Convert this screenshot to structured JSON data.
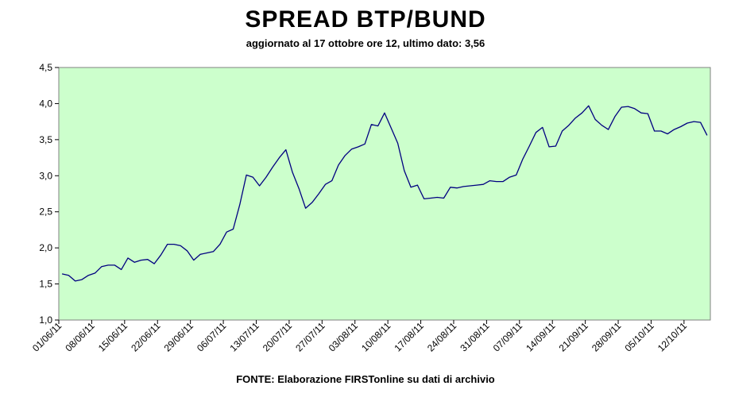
{
  "chart_data": {
    "type": "line",
    "title": "SPREAD BTP/BUND",
    "subtitle": "aggiornato al 17 ottobre ore 12, ultimo dato: 3,56",
    "source": "FONTE: Elaborazione FIRSTonline su dati di archivio",
    "xlabel": "",
    "ylabel": "",
    "ylim": [
      1.0,
      4.5
    ],
    "y_ticks": [
      "1,0",
      "1,5",
      "2,0",
      "2,5",
      "3,0",
      "3,5",
      "4,0",
      "4,5"
    ],
    "x_tick_labels": [
      "01/06/11",
      "08/06/11",
      "15/06/11",
      "22/06/11",
      "29/06/11",
      "06/07/11",
      "13/07/11",
      "20/07/11",
      "27/07/11",
      "03/08/11",
      "10/08/11",
      "17/08/11",
      "24/08/11",
      "31/08/11",
      "07/09/11",
      "14/09/11",
      "21/09/11",
      "28/09/11",
      "05/10/11",
      "12/10/11"
    ],
    "colors": {
      "plot_background": "#ccffcc",
      "line": "#000080"
    },
    "grid": false,
    "series": [
      {
        "x": [
          "01/06/11",
          "02/06/11",
          "03/06/11",
          "06/06/11",
          "07/06/11",
          "08/06/11",
          "09/06/11",
          "10/06/11",
          "13/06/11",
          "14/06/11",
          "15/06/11",
          "16/06/11",
          "17/06/11",
          "20/06/11",
          "21/06/11",
          "22/06/11",
          "23/06/11",
          "24/06/11",
          "27/06/11",
          "28/06/11",
          "29/06/11",
          "30/06/11",
          "01/07/11",
          "04/07/11",
          "05/07/11",
          "06/07/11",
          "07/07/11",
          "08/07/11",
          "11/07/11",
          "12/07/11",
          "13/07/11",
          "14/07/11",
          "15/07/11",
          "18/07/11",
          "19/07/11",
          "20/07/11",
          "21/07/11",
          "22/07/11",
          "25/07/11",
          "26/07/11",
          "27/07/11",
          "28/07/11",
          "29/07/11",
          "01/08/11",
          "02/08/11",
          "03/08/11",
          "04/08/11",
          "05/08/11",
          "08/08/11",
          "09/08/11",
          "10/08/11",
          "11/08/11",
          "12/08/11",
          "15/08/11",
          "16/08/11",
          "17/08/11",
          "18/08/11",
          "19/08/11",
          "22/08/11",
          "23/08/11",
          "24/08/11",
          "25/08/11",
          "26/08/11",
          "29/08/11",
          "30/08/11",
          "31/08/11",
          "01/09/11",
          "02/09/11",
          "05/09/11",
          "06/09/11",
          "07/09/11",
          "08/09/11",
          "09/09/11",
          "12/09/11",
          "13/09/11",
          "14/09/11",
          "15/09/11",
          "16/09/11",
          "19/09/11",
          "20/09/11",
          "21/09/11",
          "22/09/11",
          "23/09/11",
          "26/09/11",
          "27/09/11",
          "28/09/11",
          "29/09/11",
          "30/09/11",
          "03/10/11",
          "04/10/11",
          "05/10/11",
          "06/10/11",
          "07/10/11",
          "10/10/11",
          "11/10/11",
          "12/10/11",
          "13/10/11",
          "14/10/11",
          "17/10/11"
        ],
        "values": [
          1.64,
          1.62,
          1.54,
          1.56,
          1.62,
          1.65,
          1.74,
          1.76,
          1.76,
          1.7,
          1.86,
          1.8,
          1.83,
          1.84,
          1.78,
          1.9,
          2.05,
          2.05,
          2.03,
          1.96,
          1.83,
          1.91,
          1.93,
          1.95,
          2.05,
          2.22,
          2.26,
          2.6,
          3.01,
          2.98,
          2.86,
          2.98,
          3.12,
          3.25,
          3.36,
          3.05,
          2.82,
          2.55,
          2.63,
          2.75,
          2.88,
          2.93,
          3.15,
          3.28,
          3.37,
          3.4,
          3.44,
          3.71,
          3.69,
          3.87,
          3.66,
          3.45,
          3.07,
          2.84,
          2.87,
          2.68,
          2.69,
          2.7,
          2.69,
          2.84,
          2.83,
          2.85,
          2.86,
          2.87,
          2.88,
          2.93,
          2.92,
          2.92,
          2.98,
          3.01,
          3.23,
          3.41,
          3.6,
          3.67,
          3.4,
          3.41,
          3.62,
          3.7,
          3.8,
          3.87,
          3.97,
          3.78,
          3.7,
          3.64,
          3.82,
          3.95,
          3.96,
          3.93,
          3.87,
          3.86,
          3.62,
          3.62,
          3.58,
          3.64,
          3.68,
          3.73,
          3.75,
          3.74,
          3.56
        ]
      }
    ]
  }
}
